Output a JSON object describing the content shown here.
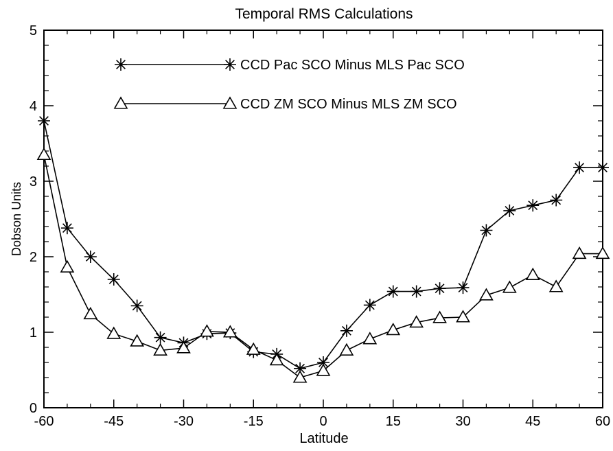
{
  "chart_data": {
    "type": "line",
    "title": "Temporal RMS Calculations",
    "xlabel": "Latitude",
    "ylabel": "Dobson Units",
    "xlim": [
      -60,
      60
    ],
    "ylim": [
      0,
      5
    ],
    "x_ticks": [
      -60,
      -45,
      -30,
      -15,
      0,
      15,
      30,
      45,
      60
    ],
    "x_tick_labels": [
      "-60",
      "-45",
      "-30",
      "-15",
      "0",
      "15",
      "30",
      "45",
      "60"
    ],
    "y_ticks": [
      0,
      1,
      2,
      3,
      4,
      5
    ],
    "y_tick_labels": [
      "0",
      "1",
      "2",
      "3",
      "4",
      "5"
    ],
    "grid": false,
    "legend_position": "top-center",
    "series": [
      {
        "name": "CCD Pac SCO Minus MLS Pac SCO",
        "marker": "asterisk",
        "color": "#000000",
        "x": [
          -60,
          -55,
          -50,
          -45,
          -40,
          -35,
          -30,
          -25,
          -20,
          -15,
          -10,
          -5,
          0,
          5,
          10,
          15,
          20,
          25,
          30,
          35,
          40,
          45,
          50,
          55,
          60
        ],
        "values": [
          3.8,
          2.38,
          2.0,
          1.7,
          1.35,
          0.93,
          0.86,
          0.98,
          0.99,
          0.74,
          0.71,
          0.52,
          0.6,
          1.02,
          1.36,
          1.54,
          1.54,
          1.58,
          1.59,
          2.35,
          2.61,
          2.68,
          2.75,
          3.18,
          3.18
        ]
      },
      {
        "name": "CCD ZM SCO Minus MLS ZM SCO",
        "marker": "triangle",
        "color": "#000000",
        "x": [
          -60,
          -55,
          -50,
          -45,
          -40,
          -35,
          -30,
          -25,
          -20,
          -15,
          -10,
          -5,
          0,
          5,
          10,
          15,
          20,
          25,
          30,
          35,
          40,
          45,
          50,
          55,
          60
        ],
        "values": [
          3.35,
          1.86,
          1.24,
          0.98,
          0.88,
          0.76,
          0.79,
          1.01,
          1.0,
          0.77,
          0.63,
          0.4,
          0.49,
          0.76,
          0.91,
          1.03,
          1.13,
          1.19,
          1.2,
          1.49,
          1.59,
          1.76,
          1.6,
          2.04,
          2.04
        ]
      }
    ]
  }
}
